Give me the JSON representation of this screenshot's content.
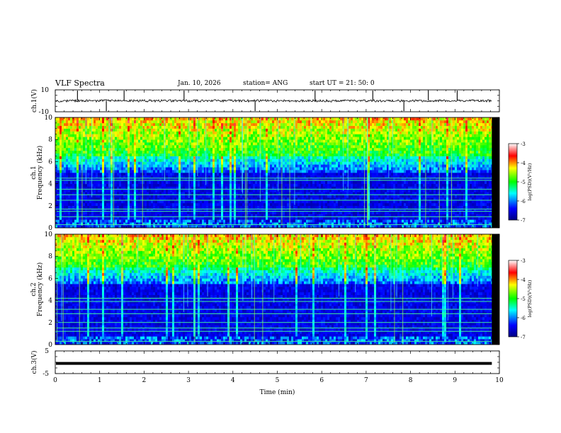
{
  "header": {
    "title": "VLF Spectra",
    "date": "Jan. 10, 2026",
    "station": "station= ANG",
    "start": "start UT =  21: 50: 0"
  },
  "chart_data": {
    "type": "heatmap",
    "title": "VLF Spectra",
    "xlabel": "Time (min)",
    "xlim": [
      0,
      10
    ],
    "xticks": [
      "0",
      "1",
      "2",
      "3",
      "4",
      "5",
      "6",
      "7",
      "8",
      "9",
      "10"
    ],
    "data_end_min": 9.83,
    "panels": [
      {
        "id": "ch1-waveform",
        "type": "line",
        "ylabel": "ch.1(V)",
        "ylim": [
          -10,
          10
        ],
        "yticks": [
          "10",
          "-10"
        ],
        "baseline": 0,
        "spikes_min": [
          0.5,
          1.15,
          1.55,
          2.9,
          4.5,
          5.85,
          7.15,
          7.85,
          8.4,
          9.05
        ]
      },
      {
        "id": "ch1-spectrogram",
        "type": "heatmap",
        "ylabel_line1": "ch.1",
        "ylabel_line2": "Frequency (kHz)",
        "ylim": [
          0,
          10
        ],
        "yticks": [
          "0",
          "2",
          "4",
          "6",
          "8",
          "10"
        ],
        "colorbar": {
          "label": "log(PSD)(V²/Hz)",
          "range": [
            -7,
            -3
          ],
          "ticks": [
            "-3",
            "-4",
            "-5",
            "-6",
            "-7"
          ]
        },
        "lines_khz": [
          4.5,
          4.3,
          3.5,
          3.0,
          2.5,
          1.7,
          1.5,
          1.0,
          0.3
        ],
        "noise_floor_khz": 6.5
      },
      {
        "id": "ch2-spectrogram",
        "type": "heatmap",
        "ylabel_line1": "ch.2",
        "ylabel_line2": "Frequency (kHz)",
        "ylim": [
          0,
          10
        ],
        "yticks": [
          "0",
          "2",
          "4",
          "6",
          "8",
          "10"
        ],
        "colorbar": {
          "label": "log(PSD)(V²/Hz)",
          "range": [
            -7,
            -3
          ],
          "ticks": [
            "-3",
            "-4",
            "-5",
            "-6",
            "-7"
          ]
        },
        "lines_khz": [
          4.2,
          3.9,
          3.2,
          2.8,
          2.0,
          1.5,
          1.2,
          0.3
        ],
        "noise_floor_khz": 6.8
      },
      {
        "id": "ch3-waveform",
        "type": "line",
        "ylabel": "ch.3(V)",
        "ylim": [
          -5,
          5
        ],
        "yticks": [
          "5",
          "-5"
        ],
        "value": -0.5
      }
    ]
  }
}
